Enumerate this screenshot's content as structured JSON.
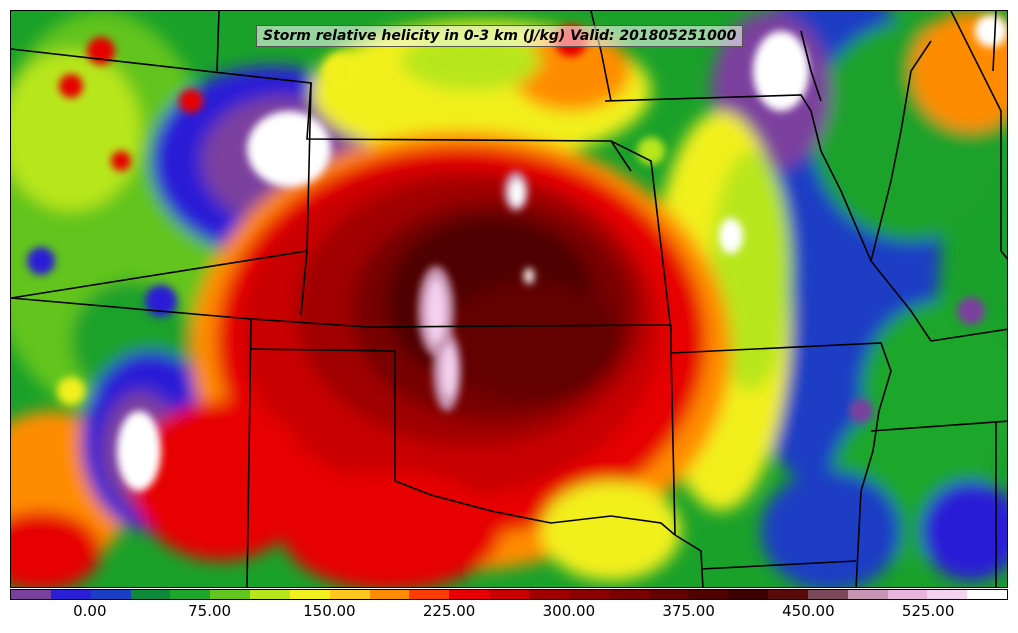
{
  "title": "Storm relative helicity in 0-3 km (J/kg) Valid: 201805251000",
  "colorbar": {
    "colors": [
      "#7b3f9e",
      "#2a1fd6",
      "#1a3ec4",
      "#0e8a3a",
      "#1fa62a",
      "#62c41e",
      "#b8e61e",
      "#f2f01e",
      "#ffc81e",
      "#ff8c00",
      "#ff3c00",
      "#e60000",
      "#c80000",
      "#a00000",
      "#8c0000",
      "#780000",
      "#640000",
      "#500000",
      "#3c0000",
      "#5a0a0a",
      "#7a4a5a",
      "#c896b4",
      "#e6b4dc",
      "#f5d2f0",
      "#ffffff"
    ],
    "ticks": [
      "0.00",
      "75.00",
      "150.00",
      "225.00",
      "300.00",
      "375.00",
      "450.00",
      "525.00"
    ]
  },
  "palette": {
    "low_purple": "#7b3f9e",
    "blue": "#2a1fd6",
    "green": "#1aa12a",
    "yellow": "#f2f01e",
    "orange": "#ff8c00",
    "red": "#d40000",
    "dark_red": "#6a0000",
    "pink": "#e6b4dc",
    "white": "#ffffff"
  }
}
